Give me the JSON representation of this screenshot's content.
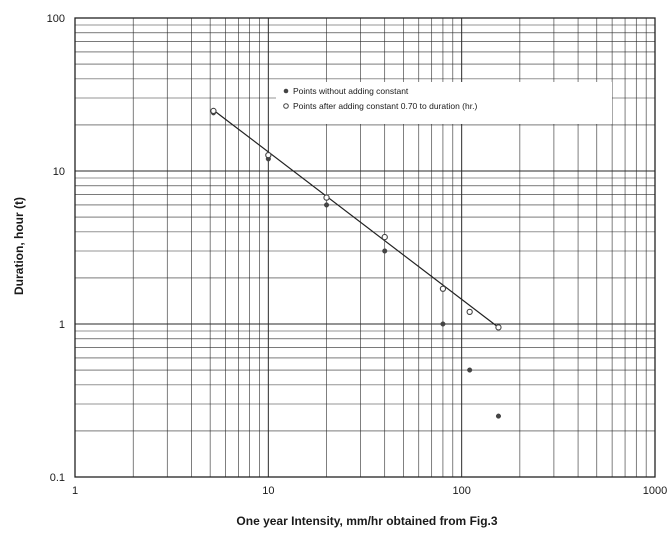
{
  "chart_data": {
    "type": "scatter",
    "x_scale": "log",
    "y_scale": "log",
    "xlim": [
      1,
      1000
    ],
    "ylim": [
      0.1,
      100
    ],
    "grid": true,
    "legend_position": "top-right",
    "xlabel": "One year Intensity, mm/hr obtained from Fig.3",
    "ylabel": "Duration, hour (t)",
    "x_tick_labels": [
      "1",
      "10",
      "100",
      "1000"
    ],
    "y_tick_labels": [
      "0.1",
      "1",
      "10",
      "100"
    ],
    "series": [
      {
        "name": "Points without adding constant",
        "marker": "filled",
        "points": [
          {
            "x": 5.2,
            "y": 24
          },
          {
            "x": 10,
            "y": 12
          },
          {
            "x": 20,
            "y": 6
          },
          {
            "x": 40,
            "y": 3
          },
          {
            "x": 80,
            "y": 1
          },
          {
            "x": 110,
            "y": 0.5
          },
          {
            "x": 155,
            "y": 0.25
          }
        ]
      },
      {
        "name": "Points after adding constant 0.70 to duration (hr.)",
        "marker": "open",
        "points": [
          {
            "x": 5.2,
            "y": 24.7
          },
          {
            "x": 10,
            "y": 12.7
          },
          {
            "x": 20,
            "y": 6.7
          },
          {
            "x": 40,
            "y": 3.7
          },
          {
            "x": 80,
            "y": 1.7
          },
          {
            "x": 110,
            "y": 1.2
          },
          {
            "x": 155,
            "y": 0.95
          }
        ]
      }
    ],
    "fit_line": {
      "x": [
        5.2,
        155
      ],
      "y": [
        25,
        0.95
      ]
    },
    "colors": {
      "points": "#444444",
      "grid": "#2a2a2a",
      "line": "#222222"
    }
  }
}
